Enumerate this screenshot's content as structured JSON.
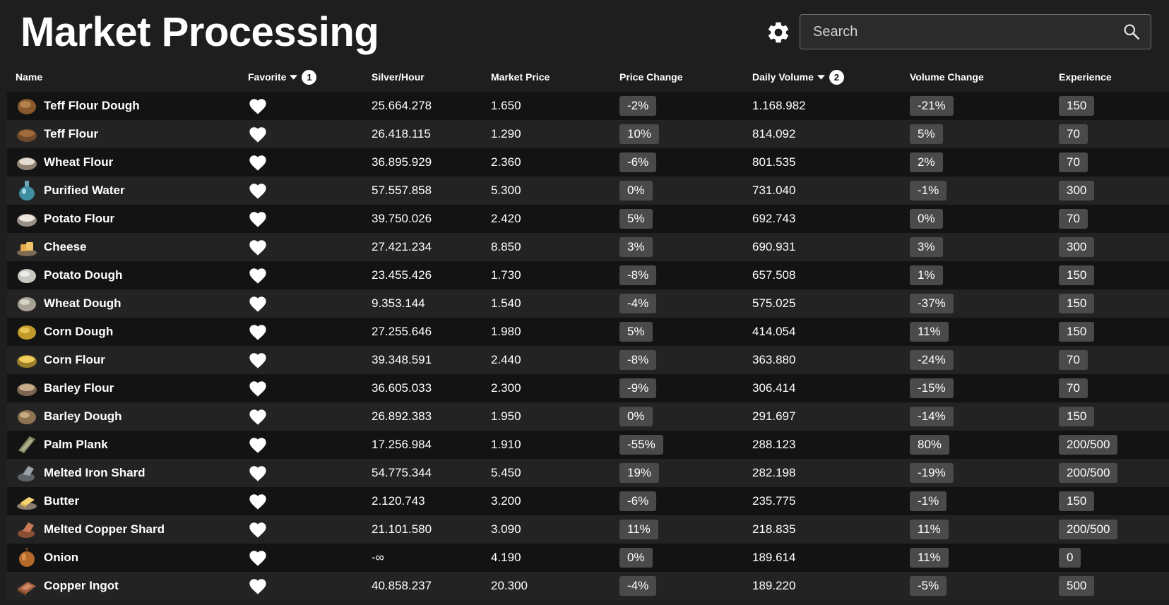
{
  "header": {
    "title": "Market Processing",
    "search_placeholder": "Search"
  },
  "columns": {
    "name": "Name",
    "favorite": "Favorite",
    "favorite_sort_order": "1",
    "silver_hour": "Silver/Hour",
    "market_price": "Market Price",
    "price_change": "Price Change",
    "daily_volume": "Daily Volume",
    "daily_volume_sort_order": "2",
    "volume_change": "Volume Change",
    "experience": "Experience"
  },
  "rows": [
    {
      "name": "Teff Flour Dough",
      "icon": "teff-flour-dough-icon",
      "favorite": true,
      "silver_hour": "25.664.278",
      "market_price": "1.650",
      "price_change": "-2%",
      "daily_volume": "1.168.982",
      "volume_change": "-21%",
      "experience": "150"
    },
    {
      "name": "Teff Flour",
      "icon": "teff-flour-icon",
      "favorite": true,
      "silver_hour": "26.418.115",
      "market_price": "1.290",
      "price_change": "10%",
      "daily_volume": "814.092",
      "volume_change": "5%",
      "experience": "70"
    },
    {
      "name": "Wheat Flour",
      "icon": "wheat-flour-icon",
      "favorite": true,
      "silver_hour": "36.895.929",
      "market_price": "2.360",
      "price_change": "-6%",
      "daily_volume": "801.535",
      "volume_change": "2%",
      "experience": "70"
    },
    {
      "name": "Purified Water",
      "icon": "purified-water-icon",
      "favorite": true,
      "silver_hour": "57.557.858",
      "market_price": "5.300",
      "price_change": "0%",
      "daily_volume": "731.040",
      "volume_change": "-1%",
      "experience": "300"
    },
    {
      "name": "Potato Flour",
      "icon": "potato-flour-icon",
      "favorite": true,
      "silver_hour": "39.750.026",
      "market_price": "2.420",
      "price_change": "5%",
      "daily_volume": "692.743",
      "volume_change": "0%",
      "experience": "70"
    },
    {
      "name": "Cheese",
      "icon": "cheese-icon",
      "favorite": true,
      "silver_hour": "27.421.234",
      "market_price": "8.850",
      "price_change": "3%",
      "daily_volume": "690.931",
      "volume_change": "3%",
      "experience": "300"
    },
    {
      "name": "Potato Dough",
      "icon": "potato-dough-icon",
      "favorite": true,
      "silver_hour": "23.455.426",
      "market_price": "1.730",
      "price_change": "-8%",
      "daily_volume": "657.508",
      "volume_change": "1%",
      "experience": "150"
    },
    {
      "name": "Wheat Dough",
      "icon": "wheat-dough-icon",
      "favorite": true,
      "silver_hour": "9.353.144",
      "market_price": "1.540",
      "price_change": "-4%",
      "daily_volume": "575.025",
      "volume_change": "-37%",
      "experience": "150"
    },
    {
      "name": "Corn Dough",
      "icon": "corn-dough-icon",
      "favorite": true,
      "silver_hour": "27.255.646",
      "market_price": "1.980",
      "price_change": "5%",
      "daily_volume": "414.054",
      "volume_change": "11%",
      "experience": "150"
    },
    {
      "name": "Corn Flour",
      "icon": "corn-flour-icon",
      "favorite": true,
      "silver_hour": "39.348.591",
      "market_price": "2.440",
      "price_change": "-8%",
      "daily_volume": "363.880",
      "volume_change": "-24%",
      "experience": "70"
    },
    {
      "name": "Barley Flour",
      "icon": "barley-flour-icon",
      "favorite": true,
      "silver_hour": "36.605.033",
      "market_price": "2.300",
      "price_change": "-9%",
      "daily_volume": "306.414",
      "volume_change": "-15%",
      "experience": "70"
    },
    {
      "name": "Barley Dough",
      "icon": "barley-dough-icon",
      "favorite": true,
      "silver_hour": "26.892.383",
      "market_price": "1.950",
      "price_change": "0%",
      "daily_volume": "291.697",
      "volume_change": "-14%",
      "experience": "150"
    },
    {
      "name": "Palm Plank",
      "icon": "palm-plank-icon",
      "favorite": true,
      "silver_hour": "17.256.984",
      "market_price": "1.910",
      "price_change": "-55%",
      "daily_volume": "288.123",
      "volume_change": "80%",
      "experience": "200/500"
    },
    {
      "name": "Melted Iron Shard",
      "icon": "melted-iron-shard-icon",
      "favorite": true,
      "silver_hour": "54.775.344",
      "market_price": "5.450",
      "price_change": "19%",
      "daily_volume": "282.198",
      "volume_change": "-19%",
      "experience": "200/500"
    },
    {
      "name": "Butter",
      "icon": "butter-icon",
      "favorite": true,
      "silver_hour": "2.120.743",
      "market_price": "3.200",
      "price_change": "-6%",
      "daily_volume": "235.775",
      "volume_change": "-1%",
      "experience": "150"
    },
    {
      "name": "Melted Copper Shard",
      "icon": "melted-copper-shard-icon",
      "favorite": true,
      "silver_hour": "21.101.580",
      "market_price": "3.090",
      "price_change": "11%",
      "daily_volume": "218.835",
      "volume_change": "11%",
      "experience": "200/500"
    },
    {
      "name": "Onion",
      "icon": "onion-icon",
      "favorite": true,
      "silver_hour": "-∞",
      "market_price": "4.190",
      "price_change": "0%",
      "daily_volume": "189.614",
      "volume_change": "11%",
      "experience": "0"
    },
    {
      "name": "Copper Ingot",
      "icon": "copper-ingot-icon",
      "favorite": true,
      "silver_hour": "40.858.237",
      "market_price": "20.300",
      "price_change": "-4%",
      "daily_volume": "189.220",
      "volume_change": "-5%",
      "experience": "500"
    }
  ],
  "colors": {
    "background": "#1e1e1e",
    "row_dark": "#131313",
    "row_light": "#232323",
    "chip": "#4a4a4a",
    "text": "#ffffff"
  }
}
